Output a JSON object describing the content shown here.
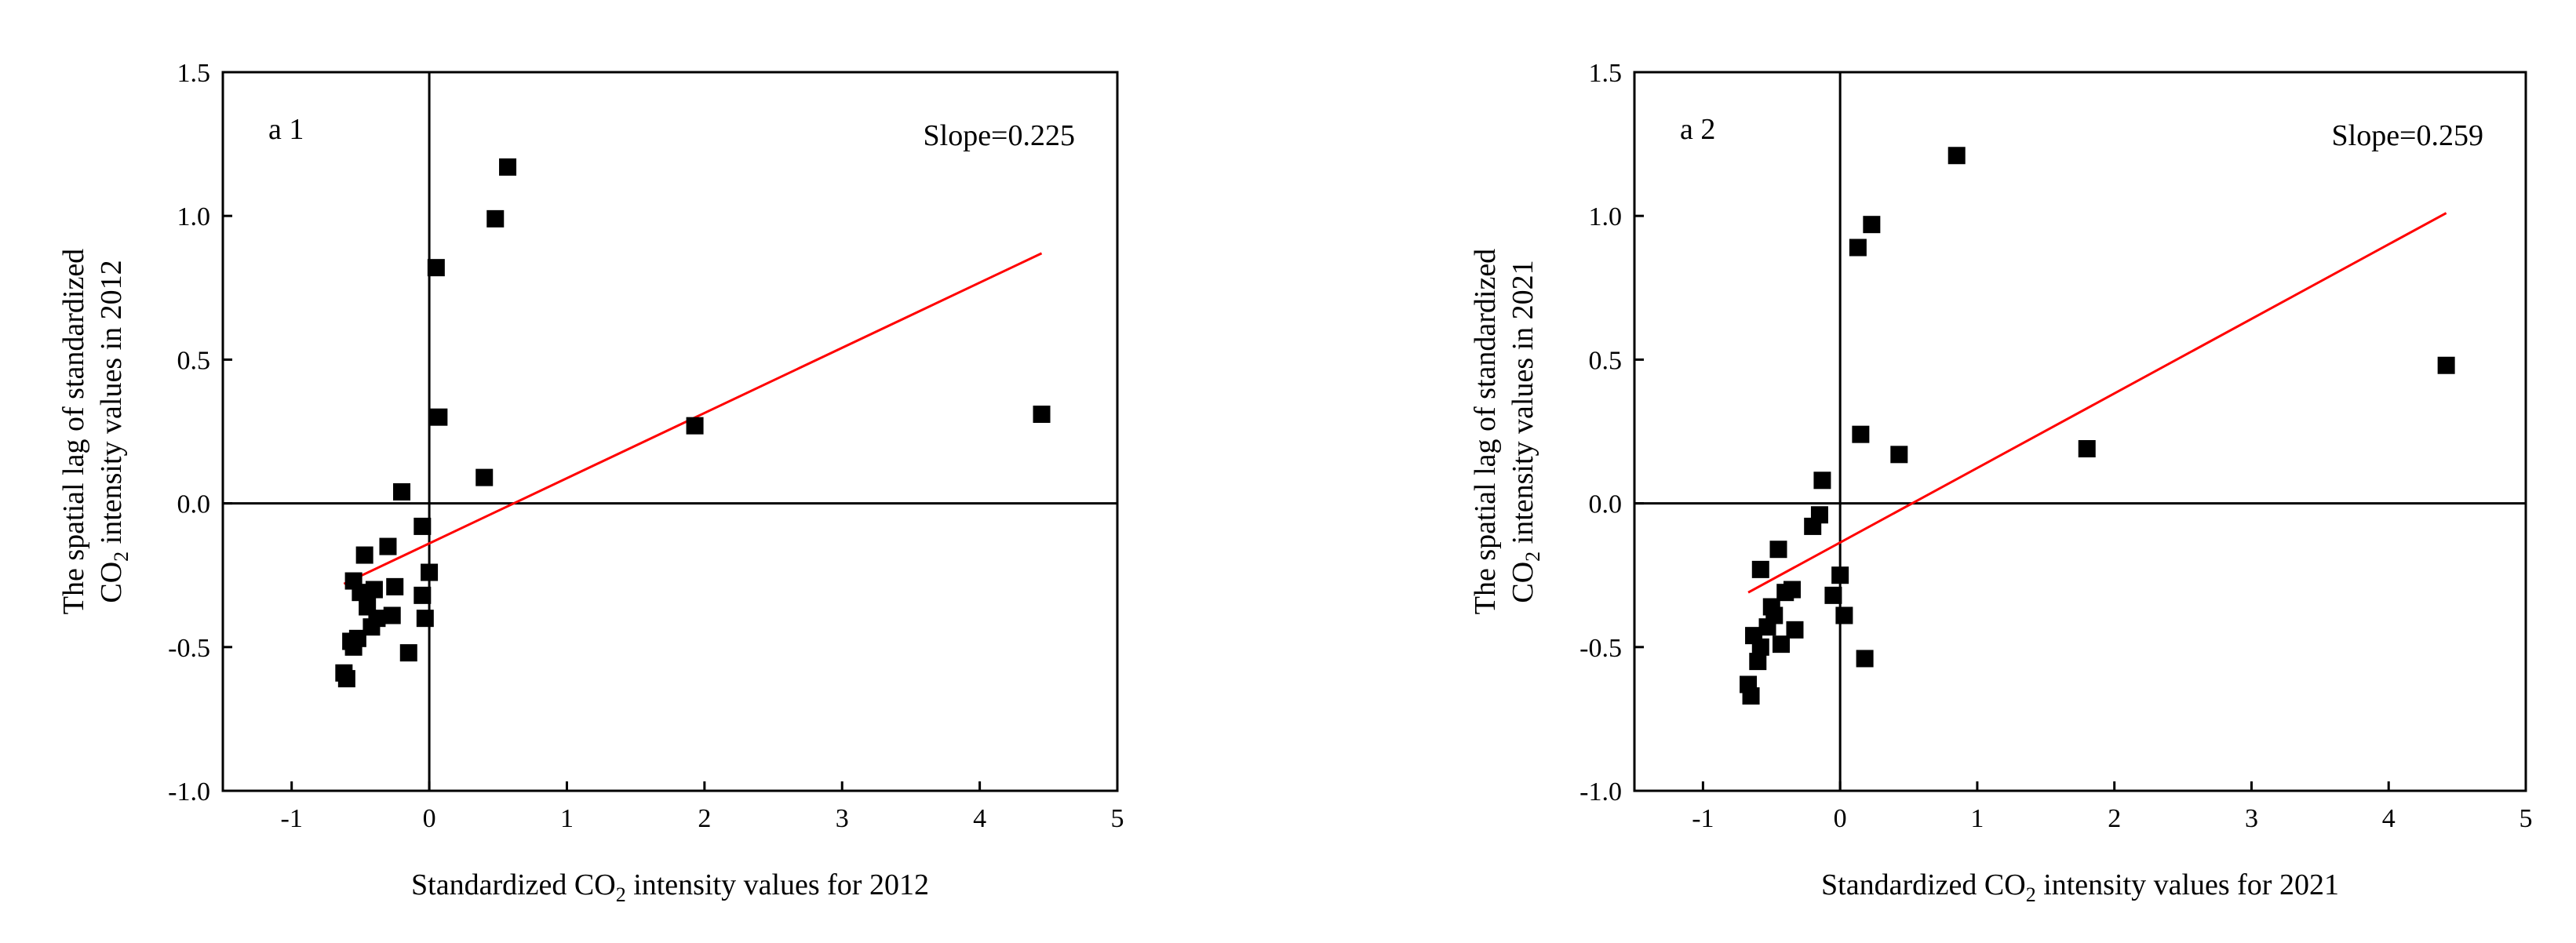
{
  "colors": {
    "axis": "#000000",
    "points": "#000000",
    "fit_line": "#ff0000"
  },
  "chart_data": [
    {
      "type": "scatter",
      "panel_label": "a 1",
      "annotation": "Slope=0.225",
      "xlabel": {
        "prefix": "Standardized CO",
        "sub": "2",
        "suffix": " intensity values for 2012"
      },
      "ylabel": {
        "line1": "The spatial lag of standardized",
        "line2_prefix": "CO",
        "line2_sub": "2",
        "line2_suffix": " intensity values in 2012"
      },
      "xlim": [
        -1.5,
        5
      ],
      "ylim": [
        -1.0,
        1.5
      ],
      "xticks": [
        -1,
        0,
        1,
        2,
        3,
        4,
        5
      ],
      "xtick_labels": [
        "-1",
        "0",
        "1",
        "2",
        "3",
        "4",
        "5"
      ],
      "yticks": [
        -1.0,
        -0.5,
        0.0,
        0.5,
        1.0,
        1.5
      ],
      "ytick_labels": [
        "-1.0",
        "-0.5",
        "0.0",
        "0.5",
        "1.0",
        "1.5"
      ],
      "points": [
        [
          -0.62,
          -0.59
        ],
        [
          -0.6,
          -0.61
        ],
        [
          -0.57,
          -0.48
        ],
        [
          -0.55,
          -0.5
        ],
        [
          -0.52,
          -0.47
        ],
        [
          -0.55,
          -0.27
        ],
        [
          -0.5,
          -0.31
        ],
        [
          -0.47,
          -0.18
        ],
        [
          -0.45,
          -0.36
        ],
        [
          -0.42,
          -0.43
        ],
        [
          -0.4,
          -0.3
        ],
        [
          -0.38,
          -0.4
        ],
        [
          -0.3,
          -0.15
        ],
        [
          -0.27,
          -0.39
        ],
        [
          -0.25,
          -0.29
        ],
        [
          -0.2,
          0.04
        ],
        [
          -0.15,
          -0.52
        ],
        [
          -0.05,
          -0.08
        ],
        [
          -0.05,
          -0.32
        ],
        [
          -0.03,
          -0.4
        ],
        [
          0.0,
          -0.24
        ],
        [
          0.05,
          0.82
        ],
        [
          0.07,
          0.3
        ],
        [
          0.4,
          0.09
        ],
        [
          0.48,
          0.99
        ],
        [
          0.57,
          1.17
        ],
        [
          1.93,
          0.27
        ],
        [
          4.45,
          0.31
        ]
      ],
      "fit_line": {
        "x": [
          -0.62,
          4.45
        ],
        "y": [
          -0.28,
          0.87
        ]
      }
    },
    {
      "type": "scatter",
      "panel_label": "a 2",
      "annotation": "Slope=0.259",
      "xlabel": {
        "prefix": "Standardized CO",
        "sub": "2",
        "suffix": " intensity values for 2021"
      },
      "ylabel": {
        "line1": "The spatial lag of standardized",
        "line2_prefix": "CO",
        "line2_sub": "2",
        "line2_suffix": " intensity values in 2021"
      },
      "xlim": [
        -1.5,
        5
      ],
      "ylim": [
        -1.0,
        1.5
      ],
      "xticks": [
        -1,
        0,
        1,
        2,
        3,
        4,
        5
      ],
      "xtick_labels": [
        "-1",
        "0",
        "1",
        "2",
        "3",
        "4",
        "5"
      ],
      "yticks": [
        -1.0,
        -0.5,
        0.0,
        0.5,
        1.0,
        1.5
      ],
      "ytick_labels": [
        "-1.0",
        "-0.5",
        "0.0",
        "0.5",
        "1.0",
        "1.5"
      ],
      "points": [
        [
          -0.67,
          -0.63
        ],
        [
          -0.65,
          -0.67
        ],
        [
          -0.63,
          -0.46
        ],
        [
          -0.6,
          -0.55
        ],
        [
          -0.58,
          -0.5
        ],
        [
          -0.58,
          -0.23
        ],
        [
          -0.53,
          -0.43
        ],
        [
          -0.5,
          -0.36
        ],
        [
          -0.48,
          -0.39
        ],
        [
          -0.45,
          -0.16
        ],
        [
          -0.43,
          -0.49
        ],
        [
          -0.4,
          -0.31
        ],
        [
          -0.35,
          -0.3
        ],
        [
          -0.33,
          -0.44
        ],
        [
          -0.2,
          -0.08
        ],
        [
          -0.15,
          -0.04
        ],
        [
          -0.13,
          0.08
        ],
        [
          -0.05,
          -0.32
        ],
        [
          0.0,
          -0.25
        ],
        [
          0.03,
          -0.39
        ],
        [
          0.13,
          0.89
        ],
        [
          0.15,
          0.24
        ],
        [
          0.18,
          -0.54
        ],
        [
          0.23,
          0.97
        ],
        [
          0.43,
          0.17
        ],
        [
          0.85,
          1.21
        ],
        [
          1.8,
          0.19
        ],
        [
          4.42,
          0.48
        ]
      ],
      "fit_line": {
        "x": [
          -0.67,
          4.42
        ],
        "y": [
          -0.31,
          1.01
        ]
      }
    }
  ]
}
